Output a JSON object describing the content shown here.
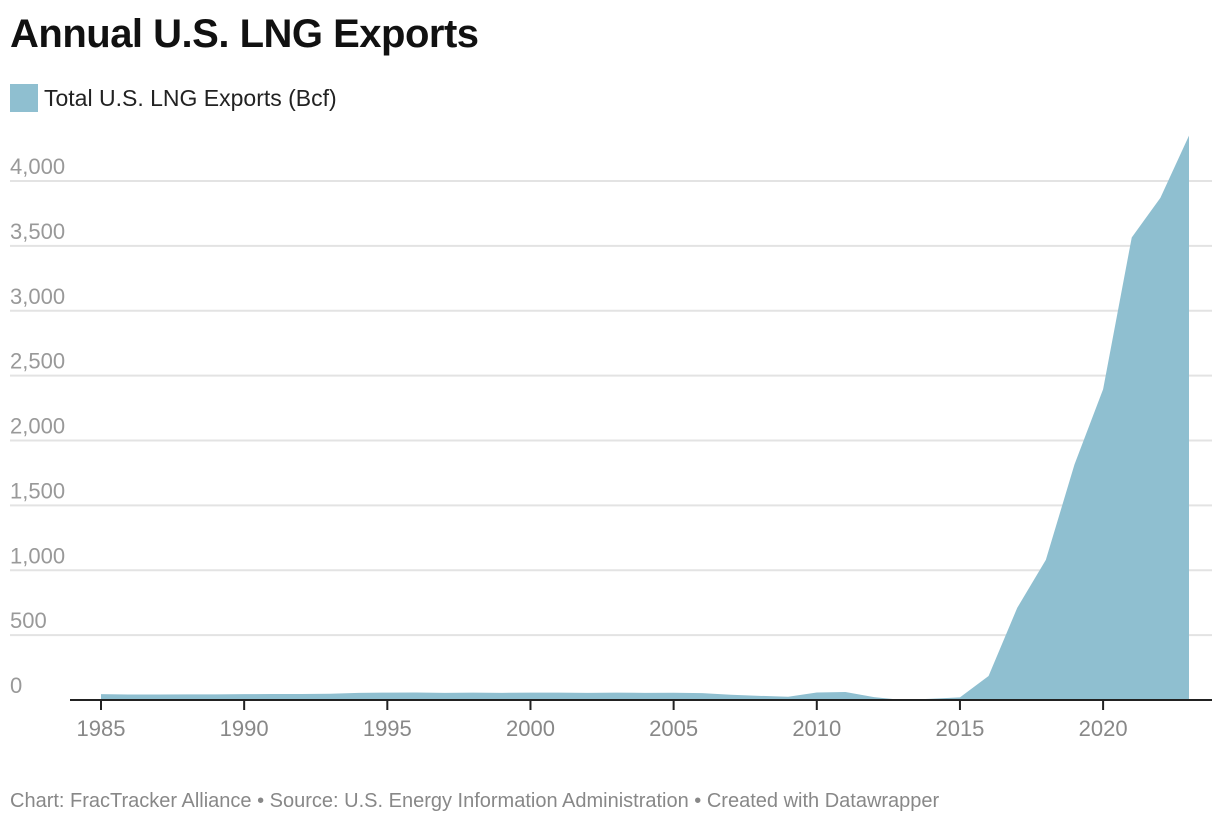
{
  "chart_data": {
    "type": "area",
    "title": "Annual U.S. LNG Exports",
    "legend": [
      {
        "label": "Total U.S. LNG Exports (Bcf)",
        "color": "#8fbfd0"
      }
    ],
    "legend_position": "top-left",
    "x": [
      1985,
      1986,
      1987,
      1988,
      1989,
      1990,
      1991,
      1992,
      1993,
      1994,
      1995,
      1996,
      1997,
      1998,
      1999,
      2000,
      2001,
      2002,
      2003,
      2004,
      2005,
      2006,
      2007,
      2008,
      2009,
      2010,
      2011,
      2012,
      2013,
      2014,
      2015,
      2016,
      2017,
      2018,
      2019,
      2020,
      2021,
      2022,
      2023
    ],
    "values": [
      45,
      42,
      42,
      43,
      43,
      45,
      46,
      46,
      48,
      55,
      57,
      58,
      55,
      57,
      55,
      57,
      57,
      55,
      57,
      55,
      56,
      53,
      40,
      32,
      25,
      58,
      62,
      22,
      0,
      10,
      20,
      185,
      710,
      1080,
      1815,
      2395,
      3565,
      3870,
      4350
    ],
    "ylim": [
      0,
      4400
    ],
    "yticks": [
      0,
      500,
      1000,
      1500,
      2000,
      2500,
      3000,
      3500,
      4000
    ],
    "ytick_labels": [
      "0",
      "500",
      "1,000",
      "1,500",
      "2,000",
      "2,500",
      "3,000",
      "3,500",
      "4,000"
    ],
    "xticks": [
      1985,
      1990,
      1995,
      2000,
      2005,
      2010,
      2015,
      2020
    ],
    "xtick_labels": [
      "1985",
      "1990",
      "1995",
      "2000",
      "2005",
      "2010",
      "2015",
      "2020"
    ],
    "grid": true
  },
  "footer": "Chart: FracTracker Alliance • Source: U.S. Energy Information Administration • Created with Datawrapper"
}
